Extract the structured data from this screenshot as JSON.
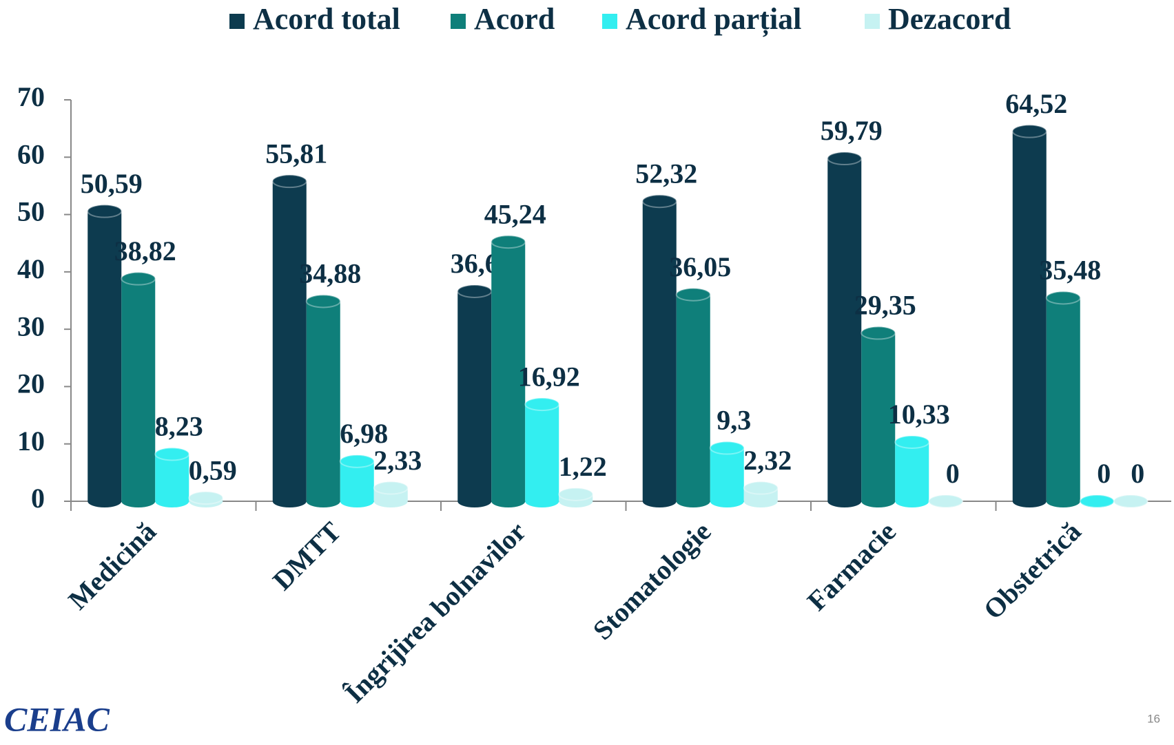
{
  "chart_data": {
    "type": "bar",
    "categories": [
      "Medicină",
      "DMTT",
      "Îngrijirea bolnavilor",
      "Stomatologie",
      "Farmacie",
      "Obstetrică"
    ],
    "series": [
      {
        "name": "Acord total",
        "color": "#0d3b4f",
        "values": [
          50.59,
          55.81,
          36.62,
          52.32,
          59.79,
          64.52
        ],
        "value_labels": [
          "50,59",
          "55,81",
          "36,62",
          "52,32",
          "59,79",
          "64,52"
        ]
      },
      {
        "name": "Acord",
        "color": "#0f7f7a",
        "values": [
          38.82,
          34.88,
          45.24,
          36.05,
          29.35,
          35.48
        ],
        "value_labels": [
          "38,82",
          "34,88",
          "45,24",
          "36,05",
          "29,35",
          "35,48"
        ]
      },
      {
        "name": "Acord parțial",
        "color": "#33eef0",
        "values": [
          8.23,
          6.98,
          16.92,
          9.3,
          10.33,
          0
        ],
        "value_labels": [
          "8,23",
          "6,98",
          "16,92",
          "9,3",
          "10,33",
          "0"
        ]
      },
      {
        "name": "Dezacord",
        "color": "#c6f2f2",
        "values": [
          0.59,
          2.33,
          1.22,
          2.32,
          0,
          0
        ],
        "value_labels": [
          "0,59",
          "2,33",
          "1,22",
          "2,32",
          "0",
          "0"
        ]
      }
    ],
    "ylim": [
      0,
      70
    ],
    "yticks": [
      0,
      10,
      20,
      30,
      40,
      50,
      60,
      70
    ],
    "legend": "top"
  },
  "logo": "CEIAC",
  "page_number": "16"
}
